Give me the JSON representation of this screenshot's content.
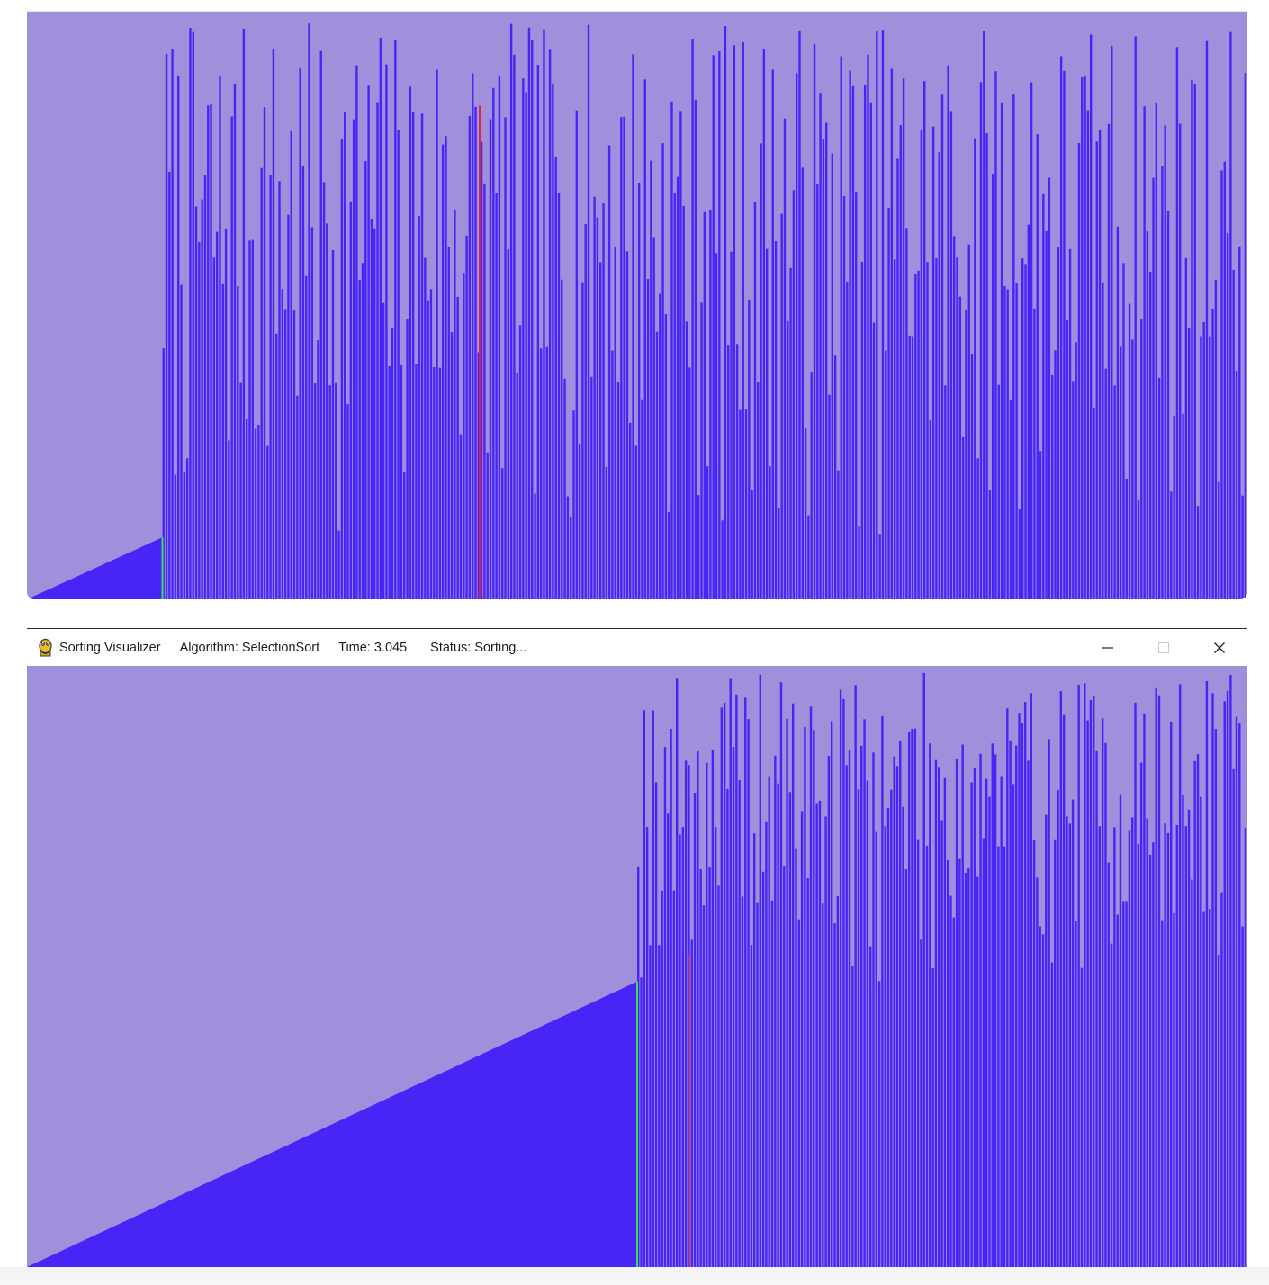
{
  "window": {
    "app_title": "Sorting Visualizer",
    "algorithm": "Algorithm: SelectionSort",
    "time": "Time: 3.045",
    "status": "Status: Sorting...",
    "app_icon": "python-snake-icon",
    "controls": [
      "minimize-icon",
      "maximize-icon",
      "close-icon"
    ]
  },
  "colors": {
    "background": "#a08fdb",
    "bar": "#4825f6",
    "current_index_marker": "#37e05a",
    "compare_marker": "#e4203a"
  },
  "frames": [
    {
      "name": "earlier-frame",
      "sorted_fraction": 0.111,
      "current_fraction": 0.111,
      "compare_fraction": 0.371,
      "seed": 7
    },
    {
      "name": "later-frame",
      "sorted_fraction": 0.5,
      "current_fraction": 0.5,
      "compare_fraction": 0.542,
      "seed": 19
    }
  ]
}
